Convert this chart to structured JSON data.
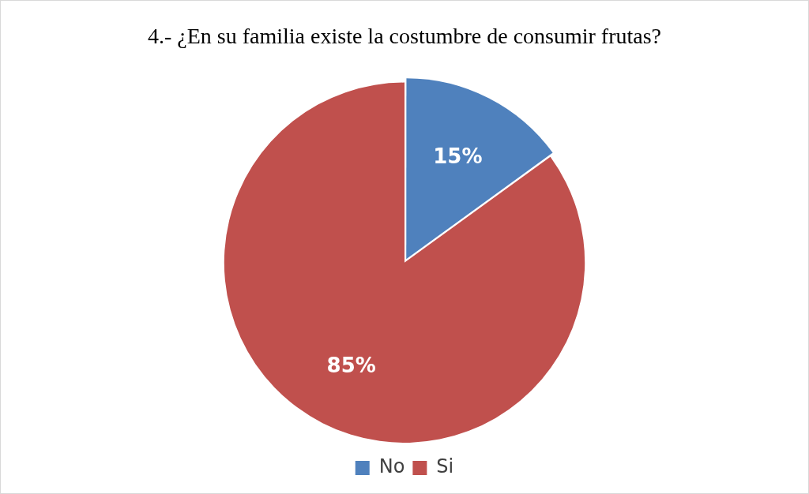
{
  "chart_data": {
    "type": "pie",
    "title": "4.- ¿En su familia existe la costumbre de consumir frutas?",
    "categories": [
      "No",
      "Si"
    ],
    "values": [
      15,
      85
    ],
    "colors": [
      "#4f81bd",
      "#c0504d"
    ],
    "value_labels": [
      "15%",
      "85%"
    ],
    "legend": "bottom"
  }
}
